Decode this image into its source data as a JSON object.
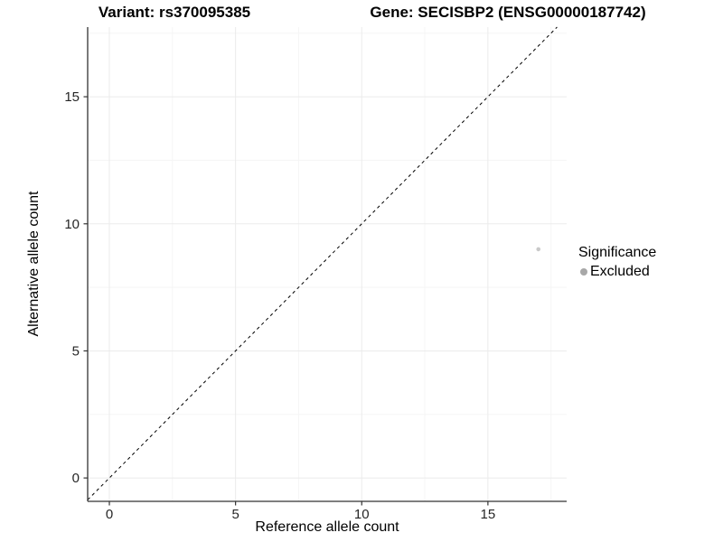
{
  "titles": {
    "left": "Variant: rs370095385",
    "right": "Gene: SECISBP2 (ENSG00000187742)"
  },
  "chart_data": {
    "type": "scatter",
    "title_left": "Variant: rs370095385",
    "title_right": "Gene: SECISBP2 (ENSG00000187742)",
    "xlabel": "Reference allele count",
    "ylabel": "Alternative allele count",
    "xlim": [
      -0.86,
      18.12
    ],
    "ylim": [
      -0.92,
      17.74
    ],
    "x_ticks": [
      0,
      5,
      10,
      15
    ],
    "y_ticks": [
      0,
      5,
      10,
      15
    ],
    "x_minor_ticks": [
      2.5,
      7.5,
      12.5,
      17.5
    ],
    "y_minor_ticks": [
      2.5,
      7.5,
      12.5,
      17.5
    ],
    "grid": true,
    "points": [
      {
        "x": 17,
        "y": 9,
        "series": "Excluded"
      }
    ],
    "reference_line": {
      "type": "identity",
      "style": "dashed",
      "color": "#000000"
    },
    "legend": {
      "title": "Significance",
      "position": "right",
      "items": [
        {
          "label": "Excluded",
          "color": "#a8a8a8"
        }
      ]
    },
    "colors": {
      "point": "#c9c9c9",
      "legend_key": "#a8a8a8",
      "grid_major": "#ebebeb",
      "grid_minor": "#f5f5f5",
      "axis_line": "#333333",
      "tick_mark": "#333333",
      "tick_label": "#262626",
      "background": "#ffffff"
    }
  }
}
